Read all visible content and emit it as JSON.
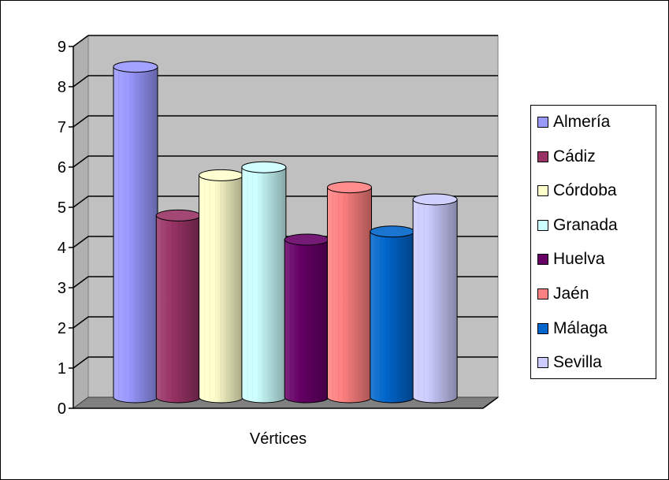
{
  "chart_data": {
    "type": "bar",
    "style": "3d-cylinder",
    "title": "",
    "xlabel": "Vértices",
    "ylabel": "",
    "ylim": [
      0,
      9
    ],
    "yticks": [
      "0",
      "1",
      "2",
      "3",
      "4",
      "5",
      "6",
      "7",
      "8",
      "9"
    ],
    "grid": true,
    "legend_position": "right",
    "categories": [
      "Vértices"
    ],
    "series": [
      {
        "name": "Almería",
        "values": [
          8.3
        ],
        "color": "#9999ff"
      },
      {
        "name": "Cádiz",
        "values": [
          4.6
        ],
        "color": "#993366"
      },
      {
        "name": "Córdoba",
        "values": [
          5.6
        ],
        "color": "#ffffcc"
      },
      {
        "name": "Granada",
        "values": [
          5.8
        ],
        "color": "#ccffff"
      },
      {
        "name": "Huelva",
        "values": [
          4.0
        ],
        "color": "#660066"
      },
      {
        "name": "Jaén",
        "values": [
          5.3
        ],
        "color": "#ff8080"
      },
      {
        "name": "Málaga",
        "values": [
          4.2
        ],
        "color": "#0066cc"
      },
      {
        "name": "Sevilla",
        "values": [
          5.0
        ],
        "color": "#ccccff"
      }
    ]
  }
}
